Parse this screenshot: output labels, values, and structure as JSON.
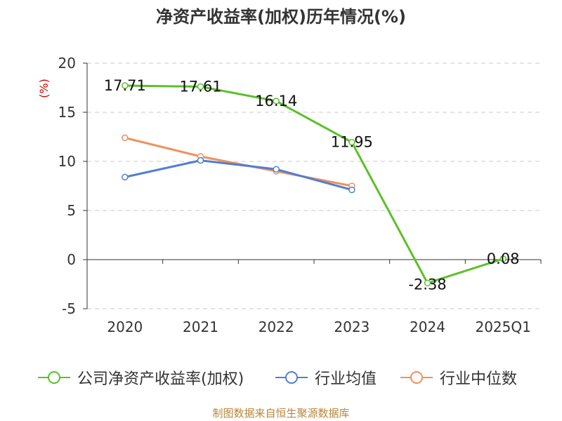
{
  "source": "制图数据来自恒生聚源数据库",
  "chart_data": {
    "type": "line",
    "title": "净资产收益率(加权)历年情况(%)",
    "ylabel": "(%)",
    "xlabel": "",
    "categories": [
      "2020",
      "2021",
      "2022",
      "2023",
      "2024",
      "2025Q1"
    ],
    "ylim": [
      -5,
      20
    ],
    "yticks": [
      -5,
      0,
      5,
      10,
      15,
      20
    ],
    "grid": true,
    "legend_position": "bottom",
    "series": [
      {
        "name": "公司净资产收益率(加权)",
        "color": "#5ac02a",
        "values": [
          17.71,
          17.61,
          16.14,
          11.95,
          -2.38,
          0.08
        ],
        "data_labels": [
          "17.71",
          "17.61",
          "16.14",
          "11.95",
          "-2.38",
          "0.08"
        ]
      },
      {
        "name": "行业均值",
        "color": "#4f7fd3",
        "values": [
          8.4,
          10.1,
          9.2,
          7.1,
          null,
          null
        ]
      },
      {
        "name": "行业中位数",
        "color": "#f0905a",
        "values": [
          12.4,
          10.5,
          9.0,
          7.5,
          null,
          null
        ]
      }
    ]
  }
}
